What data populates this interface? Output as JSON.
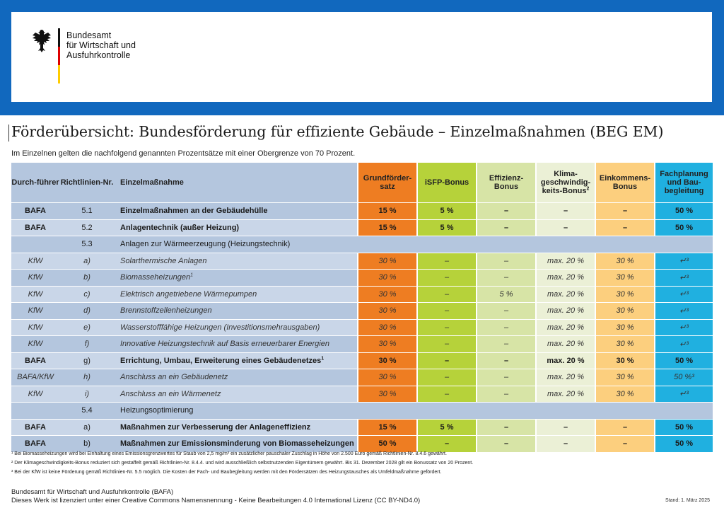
{
  "header": {
    "agency_line1": "Bundesamt",
    "agency_line2": "für Wirtschaft und",
    "agency_line3": "Ausfuhrkontrolle"
  },
  "colors": {
    "top_band": "#1168be",
    "grundfoerdersatz": "#ee7d22",
    "isfp": "#b6d23a",
    "effizienz": "#d7e4a6",
    "klima": "#ebf0d6",
    "einkommen": "#fccf7e",
    "fachplanung": "#20b0e0",
    "row_blue": "#b4c6de"
  },
  "title": "Förderübersicht: Bundesförderung für effiziente Gebäude – Einzelmaßnahmen (BEG EM)",
  "subtitle": "Im Einzelnen gelten die nachfolgend genannten Prozentsätze mit einer Obergrenze von 70 Prozent.",
  "table": {
    "headers": {
      "durchfuehrer": "Durch-führer",
      "richtlinie": "Richtlinien-Nr.",
      "massnahme": "Einzelmaßnahme",
      "grund": "Grundförder-satz",
      "isfp": "iSFP-Bonus",
      "effizienz": "Effizienz-Bonus",
      "klima": "Klima-geschwindig-keits-Bonus",
      "klima_sup": "2",
      "einkommen": "Einkommens-Bonus",
      "fach": "Fachplanung und Bau-begleitung"
    },
    "rows": [
      {
        "d": "BAFA",
        "nr": "5.1",
        "m": "Einzelmaßnahmen an der Gebäudehülle",
        "sup": "",
        "g": "15 %",
        "i": "5 %",
        "e": "–",
        "k": "–",
        "ek": "–",
        "f": "50 %"
      },
      {
        "d": "BAFA",
        "nr": "5.2",
        "m": "Anlagentechnik (außer Heizung)",
        "sup": "",
        "g": "15 %",
        "i": "5 %",
        "e": "–",
        "k": "–",
        "ek": "–",
        "f": "50 %"
      },
      {
        "nr": "5.3",
        "m": "Anlagen zur Wärmeerzeugung (Heizungstechnik)"
      },
      {
        "d": "KfW",
        "nr": "a)",
        "m": "Solarthermische Anlagen",
        "sup": "",
        "g": "30 %",
        "i": "–",
        "e": "–",
        "k": "max. 20 %",
        "ek": "30 %",
        "f": "↵³"
      },
      {
        "d": "KfW",
        "nr": "b)",
        "m": "Biomasseheizungen",
        "sup": "1",
        "g": "30 %",
        "i": "–",
        "e": "–",
        "k": "max. 20 %",
        "ek": "30 %",
        "f": "↵³"
      },
      {
        "d": "KfW",
        "nr": "c)",
        "m": "Elektrisch angetriebene Wärmepumpen",
        "sup": "",
        "g": "30 %",
        "i": "–",
        "e": "5 %",
        "k": "max. 20 %",
        "ek": "30 %",
        "f": "↵³"
      },
      {
        "d": "KfW",
        "nr": "d)",
        "m": "Brennstoffzellenheizungen",
        "sup": "",
        "g": "30 %",
        "i": "–",
        "e": "–",
        "k": "max. 20 %",
        "ek": "30 %",
        "f": "↵³"
      },
      {
        "d": "KfW",
        "nr": "e)",
        "m": "Wasserstofffähige Heizungen (Investitionsmehrausgaben)",
        "sup": "",
        "g": "30 %",
        "i": "–",
        "e": "–",
        "k": "max. 20 %",
        "ek": "30 %",
        "f": "↵³"
      },
      {
        "d": "KfW",
        "nr": "f)",
        "m": "Innovative Heizungstechnik auf Basis erneuerbarer Energien",
        "sup": "",
        "g": "30 %",
        "i": "–",
        "e": "–",
        "k": "max. 20 %",
        "ek": "30 %",
        "f": "↵³"
      },
      {
        "d": "BAFA",
        "nr": "g)",
        "m": "Errichtung, Umbau, Erweiterung eines Gebäudenetzes",
        "sup": "1",
        "g": "30 %",
        "i": "–",
        "e": "–",
        "k": "max. 20 %",
        "ek": "30 %",
        "f": "50 %"
      },
      {
        "d": "BAFA/KfW",
        "nr": "h)",
        "m": "Anschluss an ein Gebäudenetz",
        "sup": "",
        "g": "30 %",
        "i": "–",
        "e": "–",
        "k": "max. 20 %",
        "ek": "30 %",
        "f": "50 %³"
      },
      {
        "d": "KfW",
        "nr": "i)",
        "m": "Anschluss an ein Wärmenetz",
        "sup": "",
        "g": "30 %",
        "i": "–",
        "e": "–",
        "k": "max. 20 %",
        "ek": "30 %",
        "f": "↵³"
      },
      {
        "nr": "5.4",
        "m": "Heizungsoptimierung"
      },
      {
        "d": "BAFA",
        "nr": "a)",
        "m": "Maßnahmen zur Verbesserung der Anlageneffizienz",
        "sup": "",
        "g": "15 %",
        "i": "5 %",
        "e": "–",
        "k": "–",
        "ek": "–",
        "f": "50 %"
      },
      {
        "d": "BAFA",
        "nr": "b)",
        "m": "Maßnahmen zur Emissionsminderung von Biomasseheizungen",
        "sup": "",
        "g": "50 %",
        "i": "–",
        "e": "–",
        "k": "–",
        "ek": "–",
        "f": "50 %"
      }
    ]
  },
  "footnotes": {
    "f1": "¹ Bei Biomasseheizungen wird bei Einhaltung eines Emissionsgrenzwertes für Staub von 2,5 mg/m³ ein zusätzlicher pauschaler Zuschlag in Höhe von 2.500 Euro gemäß Richtlinien-Nr. 8.4.6 gewährt.",
    "f2": "² Der Klimageschwindigkeits-Bonus reduziert sich gestaffelt gemäß Richtlinien-Nr. 8.4.4. und wird ausschließlich selbstnutzenden Eigentümern gewährt. Bis 31. Dezember 2028 gilt ein Bonussatz von 20 Prozent.",
    "f3": "³ Bei der KfW ist keine Förderung gemäß Richtlinien-Nr. 5.5 möglich. Die Kosten der Fach- und Baubegleitung werden mit den Fördersätzen des Heizungstausches als Umfeldmaßnahme gefördert."
  },
  "footer": {
    "line1": "Bundesamt für Wirtschaft und Ausfuhrkontrolle (BAFA)",
    "line2": "Dieses Werk ist lizenziert unter einer Creative Commons Namensnennung - Keine Bearbeitungen 4.0 International Lizenz (CC BY-ND4.0)",
    "stand": "Stand: 1. März 2025"
  }
}
